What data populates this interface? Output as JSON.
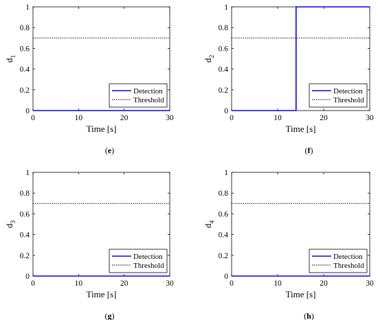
{
  "chart_data": [
    {
      "type": "line",
      "panel_label": "(e)",
      "xlabel": "Time [s]",
      "ylabel": "d",
      "ylabel_subscript": "1",
      "xlim": [
        0,
        30
      ],
      "ylim": [
        0,
        1
      ],
      "xticks": [
        "0",
        "10",
        "20",
        "30"
      ],
      "yticks": [
        "0",
        "0.2",
        "0.4",
        "0.6",
        "0.8",
        "1"
      ],
      "grid": false,
      "legend_position": "bottom-right",
      "series": [
        {
          "name": "Detection",
          "color": "#0000ff",
          "style": "solid",
          "x": [
            0,
            30
          ],
          "y": [
            0,
            0
          ]
        },
        {
          "name": "Threshold",
          "color": "#000000",
          "style": "dotted",
          "x": [
            0,
            30
          ],
          "y": [
            0.7,
            0.7
          ]
        }
      ]
    },
    {
      "type": "line",
      "panel_label": "(f)",
      "xlabel": "Time [s]",
      "ylabel": "d",
      "ylabel_subscript": "2",
      "xlim": [
        0,
        30
      ],
      "ylim": [
        0,
        1
      ],
      "xticks": [
        "0",
        "10",
        "20",
        "30"
      ],
      "yticks": [
        "0",
        "0.2",
        "0.4",
        "0.6",
        "0.8",
        "1"
      ],
      "grid": false,
      "legend_position": "bottom-right",
      "series": [
        {
          "name": "Detection",
          "color": "#0000ff",
          "style": "solid",
          "x": [
            0,
            14,
            14,
            30
          ],
          "y": [
            0,
            0,
            1,
            1
          ]
        },
        {
          "name": "Threshold",
          "color": "#000000",
          "style": "dotted",
          "x": [
            0,
            30
          ],
          "y": [
            0.7,
            0.7
          ]
        }
      ]
    },
    {
      "type": "line",
      "panel_label": "(g)",
      "xlabel": "Time [s]",
      "ylabel": "d",
      "ylabel_subscript": "3",
      "xlim": [
        0,
        30
      ],
      "ylim": [
        0,
        1
      ],
      "xticks": [
        "0",
        "10",
        "20",
        "30"
      ],
      "yticks": [
        "0",
        "0.2",
        "0.4",
        "0.6",
        "0.8",
        "1"
      ],
      "grid": false,
      "legend_position": "bottom-right",
      "series": [
        {
          "name": "Detection",
          "color": "#0000ff",
          "style": "solid",
          "x": [
            0,
            30
          ],
          "y": [
            0,
            0
          ]
        },
        {
          "name": "Threshold",
          "color": "#000000",
          "style": "dotted",
          "x": [
            0,
            30
          ],
          "y": [
            0.7,
            0.7
          ]
        }
      ]
    },
    {
      "type": "line",
      "panel_label": "(h)",
      "xlabel": "Time [s]",
      "ylabel": "d",
      "ylabel_subscript": "4",
      "xlim": [
        0,
        30
      ],
      "ylim": [
        0,
        1
      ],
      "xticks": [
        "0",
        "10",
        "20",
        "30"
      ],
      "yticks": [
        "0",
        "0.2",
        "0.4",
        "0.6",
        "0.8",
        "1"
      ],
      "grid": false,
      "legend_position": "bottom-right",
      "series": [
        {
          "name": "Detection",
          "color": "#0000ff",
          "style": "solid",
          "x": [
            0,
            30
          ],
          "y": [
            0,
            0
          ]
        },
        {
          "name": "Threshold",
          "color": "#000000",
          "style": "dotted",
          "x": [
            0,
            30
          ],
          "y": [
            0.7,
            0.7
          ]
        }
      ]
    }
  ]
}
